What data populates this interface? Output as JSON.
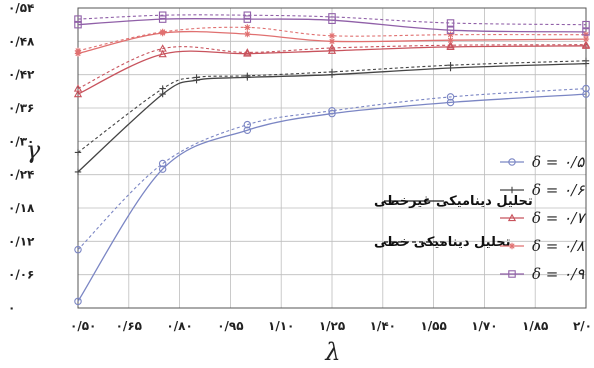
{
  "chart_data": {
    "type": "line",
    "xlabel": "λ",
    "ylabel": "γ",
    "xlim": [
      0.5,
      2.0
    ],
    "ylim": [
      0,
      0.54
    ],
    "xticks": [
      0.5,
      0.65,
      0.8,
      0.95,
      1.1,
      1.25,
      1.4,
      1.55,
      1.7,
      1.85,
      2.0
    ],
    "xtick_labels": [
      "۰/۵۰",
      "۰/۶۵",
      "۰/۸۰",
      "۰/۹۵",
      "۱/۱۰",
      "۱/۲۵",
      "۱/۴۰",
      "۱/۵۵",
      "۱/۷۰",
      "۱/۸۵",
      "۲/۰"
    ],
    "yticks": [
      0,
      0.06,
      0.12,
      0.18,
      0.24,
      0.3,
      0.36,
      0.42,
      0.48,
      0.54
    ],
    "ytick_labels": [
      "۰",
      "۰/۰۶",
      "۰/۱۲",
      "۰/۱۸",
      "۰/۲۴",
      "۰/۳۰",
      "۰/۳۶",
      "۰/۴۲",
      "۰/۴۸",
      "۰/۵۴"
    ],
    "grid": true,
    "legend_position": "right",
    "line_styles": {
      "nonlinear_label": "تحلیل دینامیکی غیرخطی",
      "linear_label": "تحلیل دینامیکی خطی"
    },
    "series": [
      {
        "name": "δ = ۰/۵",
        "color": "#7b86c4",
        "marker": "circle",
        "x": [
          0.5,
          0.75,
          1.0,
          1.25,
          1.6,
          2.0
        ],
        "nonlinear": [
          0.012,
          0.25,
          0.32,
          0.35,
          0.37,
          0.385
        ],
        "linear": [
          0.105,
          0.26,
          0.33,
          0.355,
          0.38,
          0.395
        ]
      },
      {
        "name": "δ = ۰/۶",
        "color": "#444444",
        "marker": "plus",
        "x": [
          0.5,
          0.75,
          0.85,
          1.0,
          1.25,
          1.6,
          2.0
        ],
        "nonlinear": [
          0.245,
          0.385,
          0.41,
          0.415,
          0.42,
          0.432,
          0.44
        ],
        "linear": [
          0.28,
          0.395,
          0.415,
          0.418,
          0.425,
          0.437,
          0.445
        ]
      },
      {
        "name": "δ = ۰/۷",
        "color": "#c8535d",
        "marker": "triangle",
        "x": [
          0.5,
          0.75,
          1.0,
          1.25,
          1.6,
          2.0
        ],
        "nonlinear": [
          0.385,
          0.457,
          0.458,
          0.463,
          0.47,
          0.472
        ],
        "linear": [
          0.395,
          0.467,
          0.46,
          0.468,
          0.473,
          0.474
        ]
      },
      {
        "name": "δ = ۰/۸",
        "color": "#e07070",
        "marker": "star",
        "x": [
          0.5,
          0.75,
          1.0,
          1.25,
          1.6,
          2.0
        ],
        "nonlinear": [
          0.458,
          0.495,
          0.493,
          0.48,
          0.482,
          0.484
        ],
        "linear": [
          0.463,
          0.497,
          0.505,
          0.49,
          0.492,
          0.492
        ]
      },
      {
        "name": "δ = ۰/۹",
        "color": "#9060a8",
        "marker": "square",
        "x": [
          0.5,
          0.75,
          1.0,
          1.25,
          1.6,
          2.0
        ],
        "nonlinear": [
          0.51,
          0.52,
          0.52,
          0.518,
          0.5,
          0.497
        ],
        "linear": [
          0.52,
          0.527,
          0.527,
          0.524,
          0.513,
          0.51
        ]
      }
    ]
  }
}
